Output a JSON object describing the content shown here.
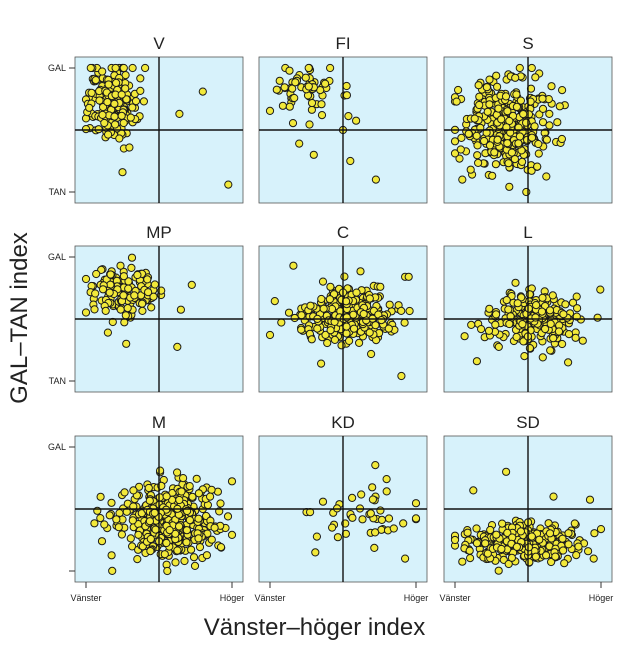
{
  "figure": {
    "xlabel": "Vänster–höger index",
    "ylabel": "GAL–TAN index",
    "x_tick_labels": [
      "Vänster",
      "Höger"
    ],
    "y_tick_labels": [
      "GAL",
      "TAN"
    ]
  },
  "colors": {
    "panel_bg": "#d7f2fb",
    "marker_fill": "#f2e93a",
    "marker_edge": "#1a1a1a",
    "crosshair": "#111111"
  },
  "chart_data": [
    {
      "type": "scatter",
      "title": "V",
      "xlim": [
        -1,
        1
      ],
      "ylim": [
        -1,
        1
      ],
      "grid": false,
      "cluster": {
        "n": 210,
        "x_center": -0.65,
        "x_spread": 0.17,
        "y_center": 0.45,
        "y_spread": 0.3
      },
      "outliers": [
        [
          0.28,
          0.26
        ],
        [
          0.6,
          0.62
        ],
        [
          0.95,
          -0.88
        ],
        [
          -0.5,
          -0.68
        ]
      ]
    },
    {
      "type": "scatter",
      "title": "FI",
      "xlim": [
        -1,
        1
      ],
      "ylim": [
        -1,
        1
      ],
      "grid": false,
      "cluster": {
        "n": 60,
        "x_center": -0.55,
        "x_spread": 0.25,
        "y_center": 0.62,
        "y_spread": 0.22
      },
      "outliers": [
        [
          -0.4,
          -0.4
        ],
        [
          -0.6,
          -0.22
        ],
        [
          0.1,
          -0.5
        ],
        [
          0.45,
          -0.8
        ],
        [
          0.0,
          0.0
        ],
        [
          0.18,
          0.15
        ]
      ]
    },
    {
      "type": "scatter",
      "title": "S",
      "xlim": [
        -1,
        1
      ],
      "ylim": [
        -1,
        1
      ],
      "grid": false,
      "cluster": {
        "n": 360,
        "x_center": -0.3,
        "x_spread": 0.3,
        "y_center": 0.1,
        "y_spread": 0.38
      },
      "outliers": [
        [
          0.25,
          -0.75
        ],
        [
          0.1,
          0.85
        ],
        [
          -0.9,
          -0.8
        ]
      ]
    },
    {
      "type": "scatter",
      "title": "MP",
      "xlim": [
        -1,
        1
      ],
      "ylim": [
        -1,
        1
      ],
      "grid": false,
      "cluster": {
        "n": 140,
        "x_center": -0.45,
        "x_spread": 0.24,
        "y_center": 0.48,
        "y_spread": 0.2
      },
      "outliers": [
        [
          -0.7,
          -0.22
        ],
        [
          -0.45,
          -0.4
        ],
        [
          0.25,
          -0.45
        ],
        [
          0.45,
          0.55
        ],
        [
          0.3,
          0.15
        ]
      ]
    },
    {
      "type": "scatter",
      "title": "C",
      "xlim": [
        -1,
        1
      ],
      "ylim": [
        -1,
        1
      ],
      "grid": false,
      "cluster": {
        "n": 310,
        "x_center": 0.05,
        "x_spread": 0.33,
        "y_center": 0.05,
        "y_spread": 0.22
      },
      "outliers": [
        [
          -0.68,
          0.86
        ],
        [
          0.85,
          0.68
        ],
        [
          0.9,
          0.68
        ],
        [
          -0.3,
          -0.72
        ],
        [
          0.8,
          -0.92
        ]
      ]
    },
    {
      "type": "scatter",
      "title": "L",
      "xlim": [
        -1,
        1
      ],
      "ylim": [
        -1,
        1
      ],
      "grid": false,
      "cluster": {
        "n": 230,
        "x_center": 0.1,
        "x_spread": 0.3,
        "y_center": 0.0,
        "y_spread": 0.22
      },
      "outliers": [
        [
          -0.7,
          -0.68
        ],
        [
          -0.4,
          -0.45
        ],
        [
          0.75,
          -0.35
        ],
        [
          0.55,
          -0.7
        ]
      ]
    },
    {
      "type": "scatter",
      "title": "M",
      "xlim": [
        -1,
        1
      ],
      "ylim": [
        -1,
        1
      ],
      "grid": false,
      "cluster": {
        "n": 420,
        "x_center": 0.15,
        "x_spread": 0.33,
        "y_center": -0.2,
        "y_spread": 0.3
      },
      "outliers": [
        [
          -0.65,
          0.1
        ],
        [
          -0.75,
          -0.25
        ],
        [
          -0.35,
          0.3
        ],
        [
          0.7,
          0.2
        ]
      ]
    },
    {
      "type": "scatter",
      "title": "KD",
      "xlim": [
        -1,
        1
      ],
      "ylim": [
        -1,
        1
      ],
      "grid": false,
      "cluster": {
        "n": 40,
        "x_center": 0.3,
        "x_spread": 0.35,
        "y_center": -0.1,
        "y_spread": 0.3
      },
      "outliers": [
        [
          -0.5,
          -0.05
        ],
        [
          -0.45,
          -0.05
        ],
        [
          -0.38,
          -0.7
        ],
        [
          0.4,
          0.35
        ],
        [
          0.85,
          -0.8
        ],
        [
          -0.15,
          -0.3
        ]
      ]
    },
    {
      "type": "scatter",
      "title": "SD",
      "xlim": [
        -1,
        1
      ],
      "ylim": [
        -1,
        1
      ],
      "grid": false,
      "cluster": {
        "n": 380,
        "x_center": -0.05,
        "x_spread": 0.35,
        "y_center": -0.55,
        "y_spread": 0.15
      },
      "outliers": [
        [
          -0.75,
          0.3
        ],
        [
          -0.3,
          0.6
        ],
        [
          0.35,
          0.2
        ],
        [
          0.85,
          0.15
        ],
        [
          -0.9,
          -0.85
        ],
        [
          0.9,
          -0.8
        ]
      ]
    }
  ]
}
